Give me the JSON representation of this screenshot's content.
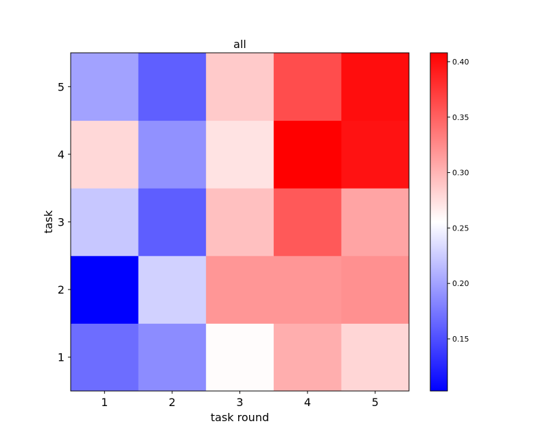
{
  "chart_data": {
    "type": "heatmap",
    "title": "all",
    "xlabel": "task round",
    "ylabel": "task",
    "x_categories": [
      "1",
      "2",
      "3",
      "4",
      "5"
    ],
    "y_categories": [
      "1",
      "2",
      "3",
      "4",
      "5"
    ],
    "rows": [
      {
        "task": "1",
        "values": [
          0.168,
          0.187,
          0.257,
          0.304,
          0.28
        ]
      },
      {
        "task": "2",
        "values": [
          0.103,
          0.228,
          0.318,
          0.318,
          0.322
        ]
      },
      {
        "task": "3",
        "values": [
          0.222,
          0.159,
          0.293,
          0.355,
          0.31
        ]
      },
      {
        "task": "4",
        "values": [
          0.279,
          0.19,
          0.272,
          0.408,
          0.397
        ]
      },
      {
        "task": "5",
        "values": [
          0.2,
          0.16,
          0.287,
          0.362,
          0.4
        ]
      }
    ],
    "vmin": 0.103,
    "vmax": 0.408,
    "colormap": "bwr",
    "colorbar_ticks": [
      "0.15",
      "0.20",
      "0.25",
      "0.30",
      "0.35",
      "0.40"
    ],
    "colors": {
      "low": "#0000ff",
      "mid": "#ffffff",
      "high": "#ff0000"
    }
  }
}
